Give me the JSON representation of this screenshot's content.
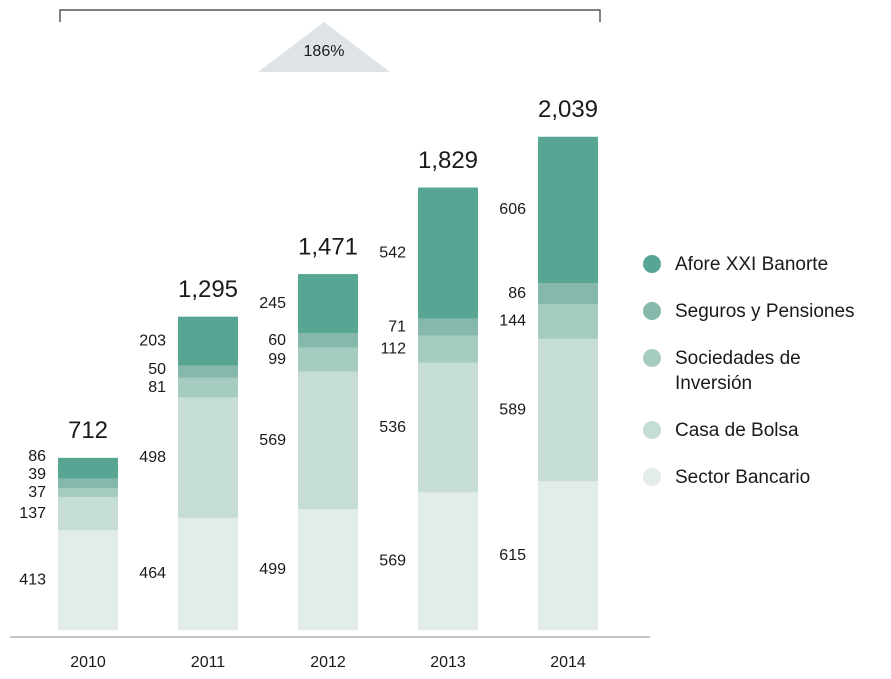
{
  "chart_data": {
    "type": "stacked_bar",
    "categories": [
      "2010",
      "2011",
      "2012",
      "2013",
      "2014"
    ],
    "series": [
      {
        "name": "Sector Bancario",
        "color": "#e2ecea",
        "values": [
          413,
          464,
          499,
          569,
          615
        ]
      },
      {
        "name": "Casa de Bolsa",
        "color": "#c5ddd6",
        "values": [
          137,
          498,
          569,
          536,
          589
        ]
      },
      {
        "name": "Sociedades de Inversión",
        "color": "#a6ccc2",
        "values": [
          37,
          81,
          99,
          112,
          144
        ]
      },
      {
        "name": "Seguros y Pensiones",
        "color": "#86b8ac",
        "values": [
          39,
          50,
          60,
          71,
          86
        ]
      },
      {
        "name": "Afore XXI Banorte",
        "color": "#58a593",
        "values": [
          86,
          203,
          245,
          542,
          606
        ]
      }
    ],
    "totals": [
      712,
      1295,
      1471,
      1829,
      2039
    ],
    "total_labels": [
      "712",
      "1,295",
      "1,471",
      "1,829",
      "2,039"
    ],
    "annotation": "186%"
  }
}
